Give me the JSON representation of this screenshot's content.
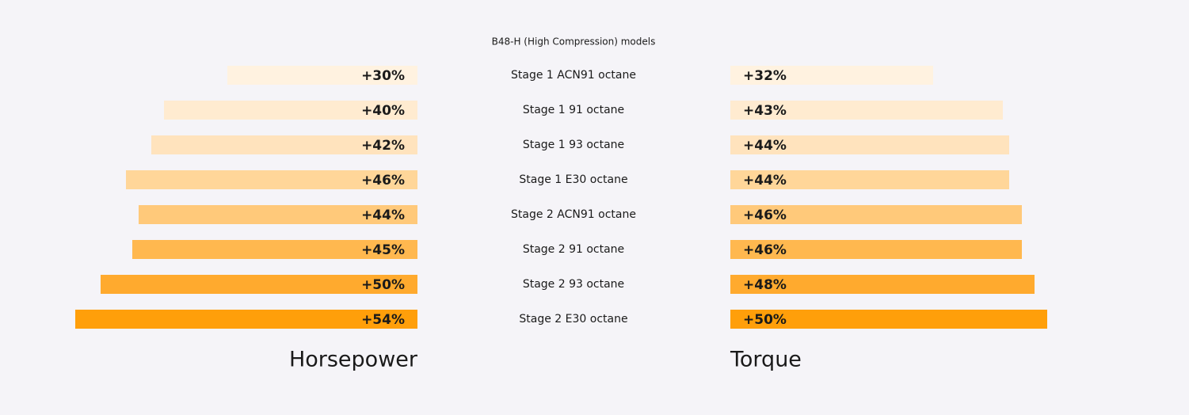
{
  "chart_data": {
    "type": "bar",
    "orientation": "horizontal",
    "title": "B48-H (High Compression) models",
    "categories": [
      "Stage 1 ACN91 octane",
      "Stage 1 91 octane",
      "Stage 1 93 octane",
      "Stage 1 E30 octane",
      "Stage 2 ACN91 octane",
      "Stage 2 91 octane",
      "Stage 2 93 octane",
      "Stage 2 E30 octane"
    ],
    "colors": [
      "#fff2e0",
      "#ffebd0",
      "#ffe3bd",
      "#ffd699",
      "#ffc97a",
      "#ffb84f",
      "#ffaa2e",
      "#ff9f0a"
    ],
    "xlim": [
      0,
      60
    ],
    "series": [
      {
        "name": "Horsepower",
        "values": [
          30,
          40,
          42,
          46,
          44,
          45,
          50,
          54
        ],
        "value_labels": [
          "+30%",
          "+40%",
          "+42%",
          "+46%",
          "+44%",
          "+45%",
          "+50%",
          "+54%"
        ]
      },
      {
        "name": "Torque",
        "values": [
          32,
          43,
          44,
          44,
          46,
          46,
          48,
          50
        ],
        "value_labels": [
          "+32%",
          "+43%",
          "+44%",
          "+44%",
          "+46%",
          "+46%",
          "+48%",
          "+50%"
        ]
      }
    ]
  }
}
